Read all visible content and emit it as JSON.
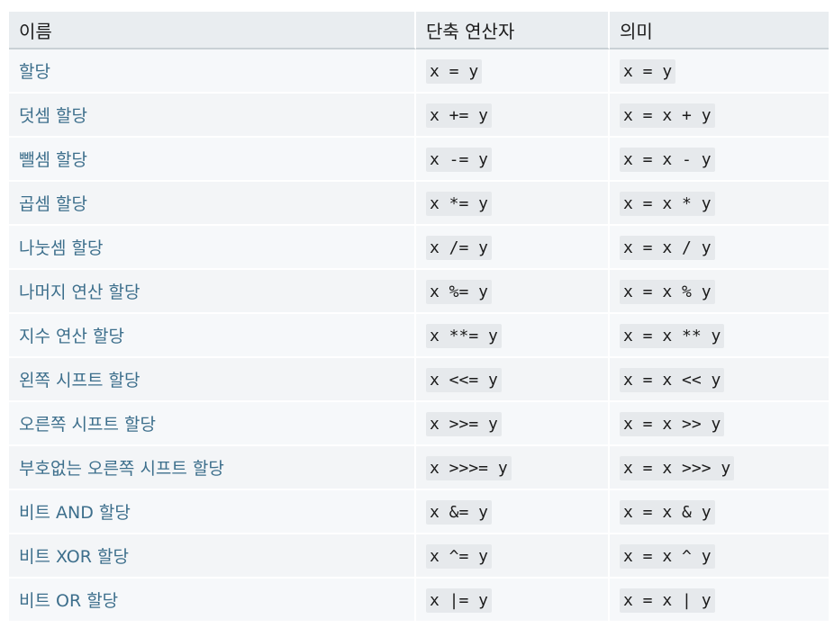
{
  "table": {
    "headers": [
      "이름",
      "단축 연산자",
      "의미"
    ],
    "rows": [
      {
        "name": "할당",
        "shorthand": "x = y",
        "meaning": "x = y"
      },
      {
        "name": "덧셈 할당",
        "shorthand": "x += y",
        "meaning": "x = x + y"
      },
      {
        "name": "뺄셈 할당",
        "shorthand": "x -= y",
        "meaning": "x = x - y"
      },
      {
        "name": "곱셈 할당",
        "shorthand": "x *= y",
        "meaning": "x = x * y"
      },
      {
        "name": "나눗셈 할당",
        "shorthand": "x /= y",
        "meaning": "x = x / y"
      },
      {
        "name": "나머지 연산 할당",
        "shorthand": "x %= y",
        "meaning": "x = x % y"
      },
      {
        "name": "지수 연산 할당",
        "shorthand": "x **= y",
        "meaning": "x = x ** y"
      },
      {
        "name": "왼쪽 시프트 할당",
        "shorthand": "x <<= y",
        "meaning": "x = x << y"
      },
      {
        "name": "오른쪽 시프트 할당",
        "shorthand": "x >>= y",
        "meaning": "x = x >> y"
      },
      {
        "name": "부호없는 오른쪽 시프트 할당",
        "shorthand": "x >>>= y",
        "meaning": "x = x >>> y"
      },
      {
        "name": "비트 AND 할당",
        "shorthand": "x &= y",
        "meaning": "x = x & y"
      },
      {
        "name": "비트 XOR 할당",
        "shorthand": "x ^= y",
        "meaning": "x = x ^ y"
      },
      {
        "name": "비트 OR 할당",
        "shorthand": "x |= y",
        "meaning": "x = x | y"
      }
    ]
  }
}
